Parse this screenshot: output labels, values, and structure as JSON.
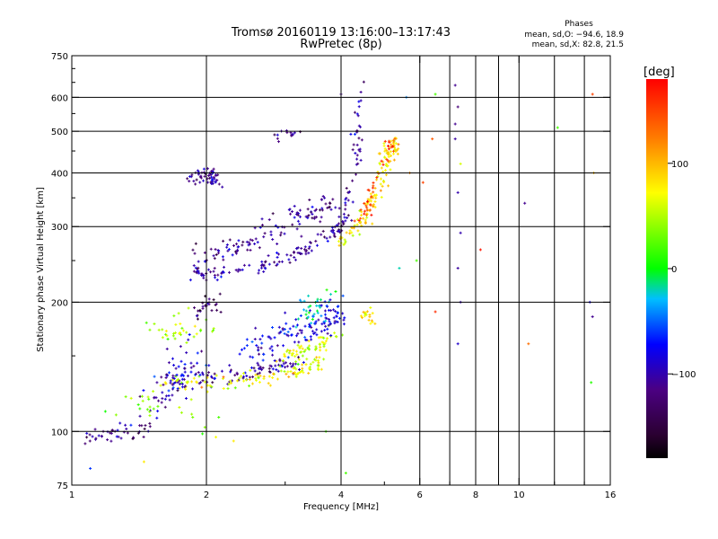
{
  "chart_data": {
    "type": "scatter",
    "title": "Tromsø 20160119 13:16:00–13:17:43",
    "subtitle": "RwPretec (8p)",
    "xlabel": "Frequency [MHz]",
    "ylabel": "Stationary phase Virtual Height [km]",
    "x_scale": "log",
    "y_scale": "log",
    "xlim": [
      1,
      16
    ],
    "ylim": [
      75,
      750
    ],
    "x_ticks": [
      1,
      2,
      4,
      6,
      8,
      10,
      16
    ],
    "y_ticks": [
      75,
      100,
      200,
      300,
      400,
      500,
      600,
      750
    ],
    "x_grid": [
      2,
      4,
      6,
      7,
      8,
      9,
      10,
      12,
      14
    ],
    "y_grid": [
      100,
      200,
      300,
      400,
      500,
      600
    ],
    "x_minor_ticks": [
      3,
      5,
      7,
      9,
      12,
      14
    ],
    "y_minor_ticks": [
      150,
      250,
      350,
      450,
      550,
      650,
      700
    ],
    "grid": true,
    "stats": {
      "heading": "Phases",
      "line1": "mean, sd,O: −94.6, 18.9",
      "line2": "mean, sd,X:  82.8, 21.5"
    },
    "colorbar": {
      "label": "[deg]",
      "min": -180,
      "max": 180,
      "ticks": [
        100,
        0,
        -100
      ],
      "tick_labels": [
        "100",
        "0",
        "−100"
      ]
    },
    "series": [
      {
        "segments": [
          {
            "f": [
              1.88,
              2.0,
              2.2,
              2.5,
              2.8,
              3.1,
              3.4,
              3.7,
              3.95,
              4.1,
              4.25,
              4.35,
              4.45
            ],
            "h": [
              235,
              233,
              236,
              240,
              247,
              257,
              268,
              280,
              296,
              320,
              380,
              470,
              640
            ],
            "phase": -105,
            "jitter": 0.03,
            "count": 170
          },
          {
            "f": [
              1.9,
              2.3,
              2.7,
              3.1,
              3.5,
              3.9
            ],
            "h": [
              252,
              268,
              285,
              305,
              325,
              345
            ],
            "phase": -108,
            "jitter": 0.06,
            "count": 120
          },
          {
            "f": [
              3.9,
              4.1,
              4.3,
              4.5,
              4.7,
              4.9,
              5.05,
              5.15,
              5.25
            ],
            "h": [
              268,
              280,
              295,
              315,
              345,
              385,
              420,
              450,
              470
            ],
            "phase": 80,
            "jitter": 0.035,
            "count": 130
          },
          {
            "f": [
              4.4,
              4.6,
              4.8,
              5.0,
              5.2
            ],
            "h": [
              300,
              340,
              385,
              440,
              480
            ],
            "phase": 150,
            "jitter": 0.03,
            "count": 40
          },
          {
            "f": [
              1.85,
              2.0,
              2.1
            ],
            "h": [
              385,
              400,
              385
            ],
            "phase": -110,
            "jitter": 0.035,
            "count": 55
          },
          {
            "f": [
              2.85,
              3.0,
              3.2
            ],
            "h": [
              475,
              500,
              495
            ],
            "phase": -100,
            "jitter": 0.02,
            "count": 14
          },
          {
            "f": [
              1.6,
              2.0,
              2.4,
              2.8,
              3.2
            ],
            "h": [
              130,
              132,
              136,
              140,
              145
            ],
            "phase": -110,
            "jitter": 0.04,
            "count": 90
          },
          {
            "f": [
              1.6,
              2.0,
              2.5,
              3.0,
              3.3,
              3.6
            ],
            "h": [
              130,
              130,
              132,
              136,
              140,
              146
            ],
            "phase": 70,
            "jitter": 0.035,
            "count": 110
          },
          {
            "f": [
              3.0,
              3.3,
              3.6,
              3.85
            ],
            "h": [
              150,
              155,
              160,
              166
            ],
            "phase": 60,
            "jitter": 0.04,
            "count": 60
          },
          {
            "f": [
              2.4,
              2.8,
              3.2,
              3.6,
              3.9
            ],
            "h": [
              150,
              162,
              172,
              182,
              190
            ],
            "phase": -85,
            "jitter": 0.07,
            "count": 130
          },
          {
            "f": [
              3.2,
              3.5,
              3.8
            ],
            "h": [
              185,
              195,
              205
            ],
            "phase": -20,
            "jitter": 0.06,
            "count": 35
          },
          {
            "f": [
              1.05,
              1.2,
              1.35,
              1.5
            ],
            "h": [
              100,
              98,
              100,
              103
            ],
            "phase": -115,
            "jitter": 0.04,
            "count": 45
          },
          {
            "f": [
              1.5,
              1.7,
              1.9
            ],
            "h": [
              118,
              130,
              150
            ],
            "phase": -90,
            "jitter": 0.09,
            "count": 70
          },
          {
            "f": [
              1.5,
              1.7,
              1.9
            ],
            "h": [
              165,
              170,
              180
            ],
            "phase": 55,
            "jitter": 0.1,
            "count": 35
          },
          {
            "f": [
              1.9,
              2.0,
              2.1
            ],
            "h": [
              190,
              200,
              195
            ],
            "phase": -130,
            "jitter": 0.04,
            "count": 25
          },
          {
            "f": [
              4.5,
              4.6,
              4.7
            ],
            "h": [
              190,
              185,
              180
            ],
            "phase": 85,
            "jitter": 0.025,
            "count": 18
          },
          {
            "f": [
              1.2,
              1.4,
              1.6,
              1.9
            ],
            "h": [
              115,
              120,
              112,
              108
            ],
            "phase": 40,
            "jitter": 0.08,
            "count": 25
          }
        ],
        "scatter": [
          {
            "f": 5.6,
            "h": 600,
            "phase": -40
          },
          {
            "f": 6.5,
            "h": 610,
            "phase": 20
          },
          {
            "f": 7.2,
            "h": 640,
            "phase": -110
          },
          {
            "f": 7.3,
            "h": 570,
            "phase": -120
          },
          {
            "f": 7.2,
            "h": 520,
            "phase": -110
          },
          {
            "f": 7.2,
            "h": 480,
            "phase": -105
          },
          {
            "f": 7.4,
            "h": 420,
            "phase": 60
          },
          {
            "f": 7.3,
            "h": 360,
            "phase": -100
          },
          {
            "f": 7.4,
            "h": 290,
            "phase": -100
          },
          {
            "f": 7.3,
            "h": 240,
            "phase": -105
          },
          {
            "f": 7.4,
            "h": 200,
            "phase": -100
          },
          {
            "f": 7.3,
            "h": 160,
            "phase": -90
          },
          {
            "f": 6.4,
            "h": 480,
            "phase": 140
          },
          {
            "f": 6.5,
            "h": 190,
            "phase": 160
          },
          {
            "f": 8.2,
            "h": 265,
            "phase": 170
          },
          {
            "f": 10.3,
            "h": 340,
            "phase": -110
          },
          {
            "f": 10.5,
            "h": 160,
            "phase": 130
          },
          {
            "f": 12.2,
            "h": 510,
            "phase": 20
          },
          {
            "f": 14.6,
            "h": 610,
            "phase": 150
          },
          {
            "f": 14.4,
            "h": 200,
            "phase": -80
          },
          {
            "f": 14.6,
            "h": 185,
            "phase": -110
          },
          {
            "f": 14.5,
            "h": 130,
            "phase": 10
          },
          {
            "f": 14.7,
            "h": 400,
            "phase": 100
          },
          {
            "f": 4.1,
            "h": 80,
            "phase": 20
          },
          {
            "f": 5.7,
            "h": 400,
            "phase": 120
          },
          {
            "f": 6.1,
            "h": 380,
            "phase": 150
          },
          {
            "f": 4.0,
            "h": 610,
            "phase": -110
          },
          {
            "f": 3.7,
            "h": 100,
            "phase": 20
          },
          {
            "f": 2.1,
            "h": 97,
            "phase": 70
          },
          {
            "f": 2.3,
            "h": 95,
            "phase": 80
          },
          {
            "f": 1.1,
            "h": 82,
            "phase": -60
          },
          {
            "f": 1.45,
            "h": 85,
            "phase": 80
          },
          {
            "f": 5.9,
            "h": 250,
            "phase": 20
          },
          {
            "f": 5.4,
            "h": 240,
            "phase": -20
          }
        ]
      }
    ]
  }
}
